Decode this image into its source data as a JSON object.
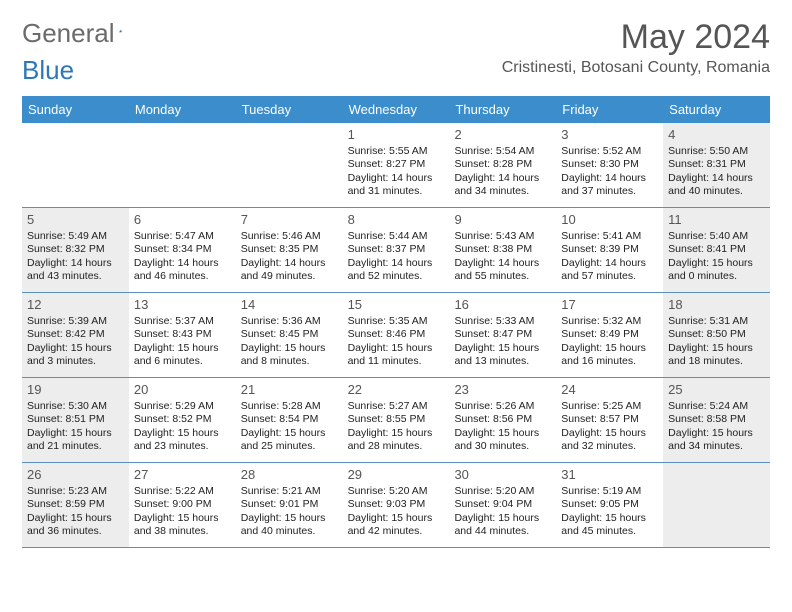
{
  "brand": {
    "part1": "General",
    "part2": "Blue"
  },
  "header": {
    "month_title": "May 2024",
    "location": "Cristinesti, Botosani County, Romania"
  },
  "calendar": {
    "day_headers": [
      "Sunday",
      "Monday",
      "Tuesday",
      "Wednesday",
      "Thursday",
      "Friday",
      "Saturday"
    ],
    "header_bg": "#3c8dcc",
    "divider_color": "#5a8fbf",
    "shade_bg": "#ededed",
    "weeks": [
      [
        {
          "n": "",
          "sr": "",
          "ss": "",
          "dl": "",
          "shade": false
        },
        {
          "n": "",
          "sr": "",
          "ss": "",
          "dl": "",
          "shade": false
        },
        {
          "n": "",
          "sr": "",
          "ss": "",
          "dl": "",
          "shade": false
        },
        {
          "n": "1",
          "sr": "Sunrise: 5:55 AM",
          "ss": "Sunset: 8:27 PM",
          "dl": "Daylight: 14 hours and 31 minutes.",
          "shade": false
        },
        {
          "n": "2",
          "sr": "Sunrise: 5:54 AM",
          "ss": "Sunset: 8:28 PM",
          "dl": "Daylight: 14 hours and 34 minutes.",
          "shade": false
        },
        {
          "n": "3",
          "sr": "Sunrise: 5:52 AM",
          "ss": "Sunset: 8:30 PM",
          "dl": "Daylight: 14 hours and 37 minutes.",
          "shade": false
        },
        {
          "n": "4",
          "sr": "Sunrise: 5:50 AM",
          "ss": "Sunset: 8:31 PM",
          "dl": "Daylight: 14 hours and 40 minutes.",
          "shade": true
        }
      ],
      [
        {
          "n": "5",
          "sr": "Sunrise: 5:49 AM",
          "ss": "Sunset: 8:32 PM",
          "dl": "Daylight: 14 hours and 43 minutes.",
          "shade": true
        },
        {
          "n": "6",
          "sr": "Sunrise: 5:47 AM",
          "ss": "Sunset: 8:34 PM",
          "dl": "Daylight: 14 hours and 46 minutes.",
          "shade": false
        },
        {
          "n": "7",
          "sr": "Sunrise: 5:46 AM",
          "ss": "Sunset: 8:35 PM",
          "dl": "Daylight: 14 hours and 49 minutes.",
          "shade": false
        },
        {
          "n": "8",
          "sr": "Sunrise: 5:44 AM",
          "ss": "Sunset: 8:37 PM",
          "dl": "Daylight: 14 hours and 52 minutes.",
          "shade": false
        },
        {
          "n": "9",
          "sr": "Sunrise: 5:43 AM",
          "ss": "Sunset: 8:38 PM",
          "dl": "Daylight: 14 hours and 55 minutes.",
          "shade": false
        },
        {
          "n": "10",
          "sr": "Sunrise: 5:41 AM",
          "ss": "Sunset: 8:39 PM",
          "dl": "Daylight: 14 hours and 57 minutes.",
          "shade": false
        },
        {
          "n": "11",
          "sr": "Sunrise: 5:40 AM",
          "ss": "Sunset: 8:41 PM",
          "dl": "Daylight: 15 hours and 0 minutes.",
          "shade": true
        }
      ],
      [
        {
          "n": "12",
          "sr": "Sunrise: 5:39 AM",
          "ss": "Sunset: 8:42 PM",
          "dl": "Daylight: 15 hours and 3 minutes.",
          "shade": true
        },
        {
          "n": "13",
          "sr": "Sunrise: 5:37 AM",
          "ss": "Sunset: 8:43 PM",
          "dl": "Daylight: 15 hours and 6 minutes.",
          "shade": false
        },
        {
          "n": "14",
          "sr": "Sunrise: 5:36 AM",
          "ss": "Sunset: 8:45 PM",
          "dl": "Daylight: 15 hours and 8 minutes.",
          "shade": false
        },
        {
          "n": "15",
          "sr": "Sunrise: 5:35 AM",
          "ss": "Sunset: 8:46 PM",
          "dl": "Daylight: 15 hours and 11 minutes.",
          "shade": false
        },
        {
          "n": "16",
          "sr": "Sunrise: 5:33 AM",
          "ss": "Sunset: 8:47 PM",
          "dl": "Daylight: 15 hours and 13 minutes.",
          "shade": false
        },
        {
          "n": "17",
          "sr": "Sunrise: 5:32 AM",
          "ss": "Sunset: 8:49 PM",
          "dl": "Daylight: 15 hours and 16 minutes.",
          "shade": false
        },
        {
          "n": "18",
          "sr": "Sunrise: 5:31 AM",
          "ss": "Sunset: 8:50 PM",
          "dl": "Daylight: 15 hours and 18 minutes.",
          "shade": true
        }
      ],
      [
        {
          "n": "19",
          "sr": "Sunrise: 5:30 AM",
          "ss": "Sunset: 8:51 PM",
          "dl": "Daylight: 15 hours and 21 minutes.",
          "shade": true
        },
        {
          "n": "20",
          "sr": "Sunrise: 5:29 AM",
          "ss": "Sunset: 8:52 PM",
          "dl": "Daylight: 15 hours and 23 minutes.",
          "shade": false
        },
        {
          "n": "21",
          "sr": "Sunrise: 5:28 AM",
          "ss": "Sunset: 8:54 PM",
          "dl": "Daylight: 15 hours and 25 minutes.",
          "shade": false
        },
        {
          "n": "22",
          "sr": "Sunrise: 5:27 AM",
          "ss": "Sunset: 8:55 PM",
          "dl": "Daylight: 15 hours and 28 minutes.",
          "shade": false
        },
        {
          "n": "23",
          "sr": "Sunrise: 5:26 AM",
          "ss": "Sunset: 8:56 PM",
          "dl": "Daylight: 15 hours and 30 minutes.",
          "shade": false
        },
        {
          "n": "24",
          "sr": "Sunrise: 5:25 AM",
          "ss": "Sunset: 8:57 PM",
          "dl": "Daylight: 15 hours and 32 minutes.",
          "shade": false
        },
        {
          "n": "25",
          "sr": "Sunrise: 5:24 AM",
          "ss": "Sunset: 8:58 PM",
          "dl": "Daylight: 15 hours and 34 minutes.",
          "shade": true
        }
      ],
      [
        {
          "n": "26",
          "sr": "Sunrise: 5:23 AM",
          "ss": "Sunset: 8:59 PM",
          "dl": "Daylight: 15 hours and 36 minutes.",
          "shade": true
        },
        {
          "n": "27",
          "sr": "Sunrise: 5:22 AM",
          "ss": "Sunset: 9:00 PM",
          "dl": "Daylight: 15 hours and 38 minutes.",
          "shade": false
        },
        {
          "n": "28",
          "sr": "Sunrise: 5:21 AM",
          "ss": "Sunset: 9:01 PM",
          "dl": "Daylight: 15 hours and 40 minutes.",
          "shade": false
        },
        {
          "n": "29",
          "sr": "Sunrise: 5:20 AM",
          "ss": "Sunset: 9:03 PM",
          "dl": "Daylight: 15 hours and 42 minutes.",
          "shade": false
        },
        {
          "n": "30",
          "sr": "Sunrise: 5:20 AM",
          "ss": "Sunset: 9:04 PM",
          "dl": "Daylight: 15 hours and 44 minutes.",
          "shade": false
        },
        {
          "n": "31",
          "sr": "Sunrise: 5:19 AM",
          "ss": "Sunset: 9:05 PM",
          "dl": "Daylight: 15 hours and 45 minutes.",
          "shade": false
        },
        {
          "n": "",
          "sr": "",
          "ss": "",
          "dl": "",
          "shade": true
        }
      ]
    ]
  }
}
